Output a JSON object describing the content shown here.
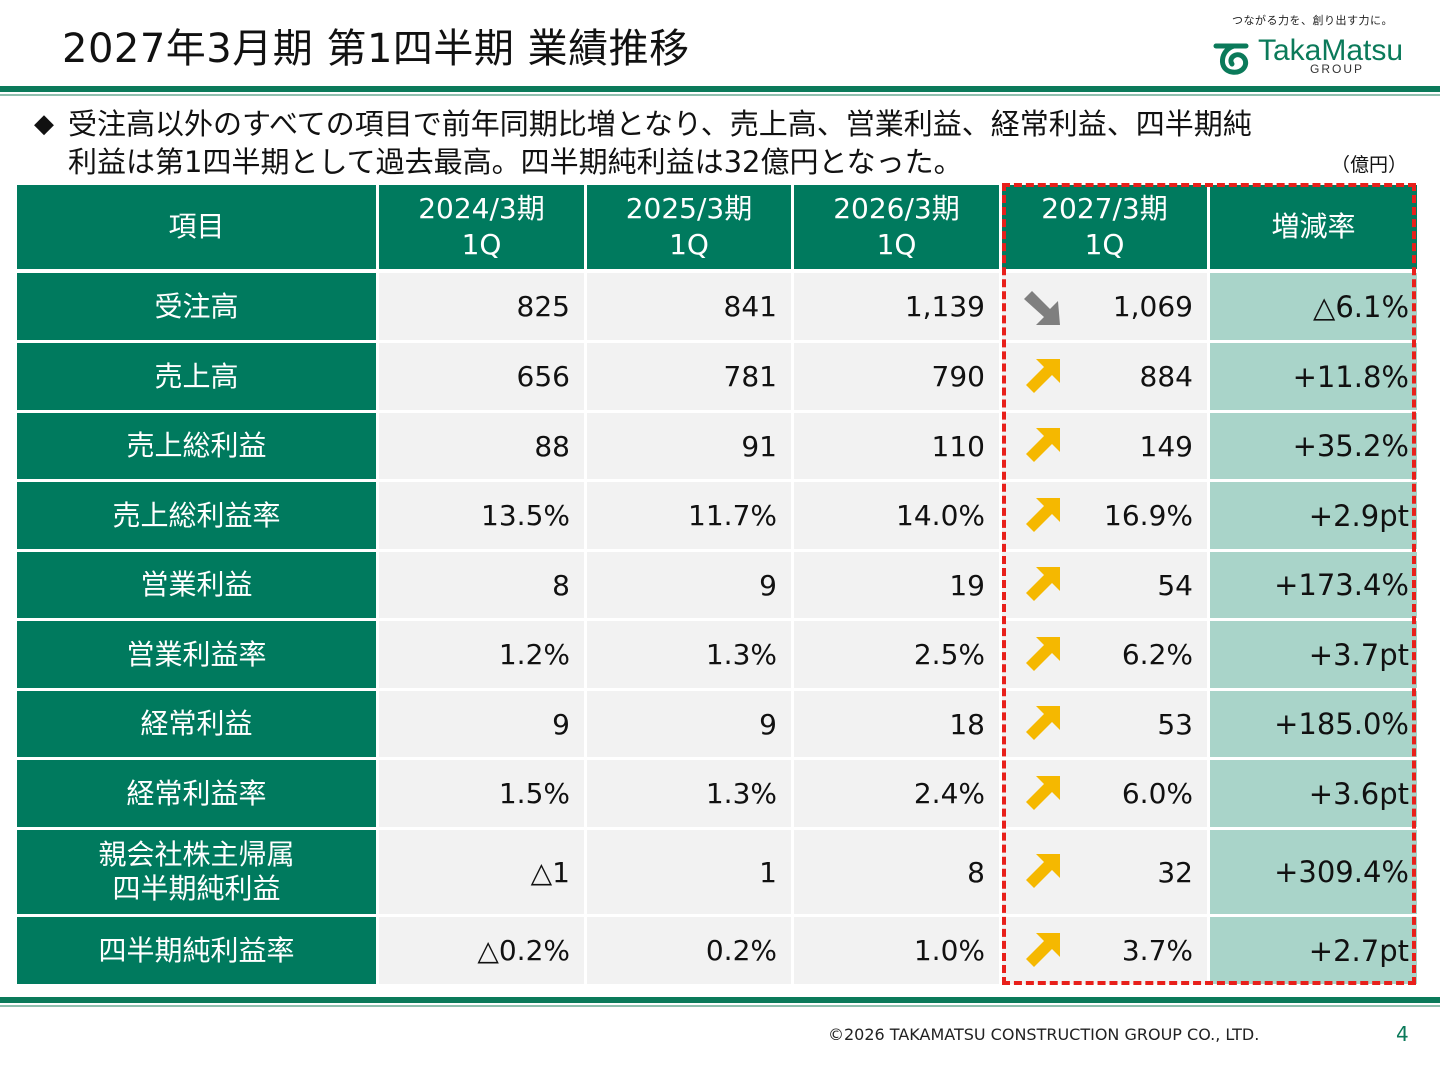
{
  "header": {
    "title": "2027年3月期 第1四半期 業績推移",
    "logo": {
      "tagline": "つながる力を、創り出す力に。",
      "brand": "TakaMatsu",
      "group": "GROUP",
      "mark_icon": "takamatsu-logo-mark-icon"
    }
  },
  "summary": {
    "bullet_icon": "diamond-bullet-icon",
    "line1": "受注高以外のすべての項目で前年同期比増となり、売上高、営業利益、経常利益、四半期純",
    "line2": "利益は第1四半期として過去最高。四半期純利益は32億円となった。",
    "unit": "（億円）"
  },
  "table": {
    "columns": [
      {
        "line1": "項目",
        "line2": ""
      },
      {
        "line1": "2024/3期",
        "line2": "1Q"
      },
      {
        "line1": "2025/3期",
        "line2": "1Q"
      },
      {
        "line1": "2026/3期",
        "line2": "1Q"
      },
      {
        "line1": "2027/3期",
        "line2": "1Q"
      },
      {
        "line1": "増減率",
        "line2": ""
      }
    ],
    "rows": [
      {
        "line1": "受注高",
        "line2": "",
        "v2024": "825",
        "v2025": "841",
        "v2026": "1,139",
        "v2027": "1,069",
        "trend": "down",
        "change": "△6.1%"
      },
      {
        "line1": "売上高",
        "line2": "",
        "v2024": "656",
        "v2025": "781",
        "v2026": "790",
        "v2027": "884",
        "trend": "up",
        "change": "+11.8%"
      },
      {
        "line1": "売上総利益",
        "line2": "",
        "v2024": "88",
        "v2025": "91",
        "v2026": "110",
        "v2027": "149",
        "trend": "up",
        "change": "+35.2%"
      },
      {
        "line1": "売上総利益率",
        "line2": "",
        "v2024": "13.5%",
        "v2025": "11.7%",
        "v2026": "14.0%",
        "v2027": "16.9%",
        "trend": "up",
        "change": "+2.9pt"
      },
      {
        "line1": "営業利益",
        "line2": "",
        "v2024": "8",
        "v2025": "9",
        "v2026": "19",
        "v2027": "54",
        "trend": "up",
        "change": "+173.4%"
      },
      {
        "line1": "営業利益率",
        "line2": "",
        "v2024": "1.2%",
        "v2025": "1.3%",
        "v2026": "2.5%",
        "v2027": "6.2%",
        "trend": "up",
        "change": "+3.7pt"
      },
      {
        "line1": "経常利益",
        "line2": "",
        "v2024": "9",
        "v2025": "9",
        "v2026": "18",
        "v2027": "53",
        "trend": "up",
        "change": "+185.0%"
      },
      {
        "line1": "経常利益率",
        "line2": "",
        "v2024": "1.5%",
        "v2025": "1.3%",
        "v2026": "2.4%",
        "v2027": "6.0%",
        "trend": "up",
        "change": "+3.6pt"
      },
      {
        "line1": "親会社株主帰属",
        "line2": "四半期純利益",
        "v2024": "△1",
        "v2025": "1",
        "v2026": "8",
        "v2027": "32",
        "trend": "up",
        "change": "+309.4%"
      },
      {
        "line1": "四半期純利益率",
        "line2": "",
        "v2024": "△0.2%",
        "v2025": "0.2%",
        "v2026": "1.0%",
        "v2027": "3.7%",
        "trend": "up",
        "change": "+2.7pt"
      }
    ],
    "arrow_icons": {
      "up": "up-right-arrow-icon",
      "down": "down-right-arrow-icon"
    },
    "colors": {
      "header": "#007a5e",
      "rate_bg": "#a9d4c9",
      "value_bg": "#f2f2f2",
      "arrow_up": "#f5b800",
      "arrow_down": "#7f7f7f",
      "highlight_border": "#e8201b"
    }
  },
  "footer": {
    "copyright": "©2026 TAKAMATSU CONSTRUCTION GROUP CO., LTD.",
    "page_number": "4"
  }
}
